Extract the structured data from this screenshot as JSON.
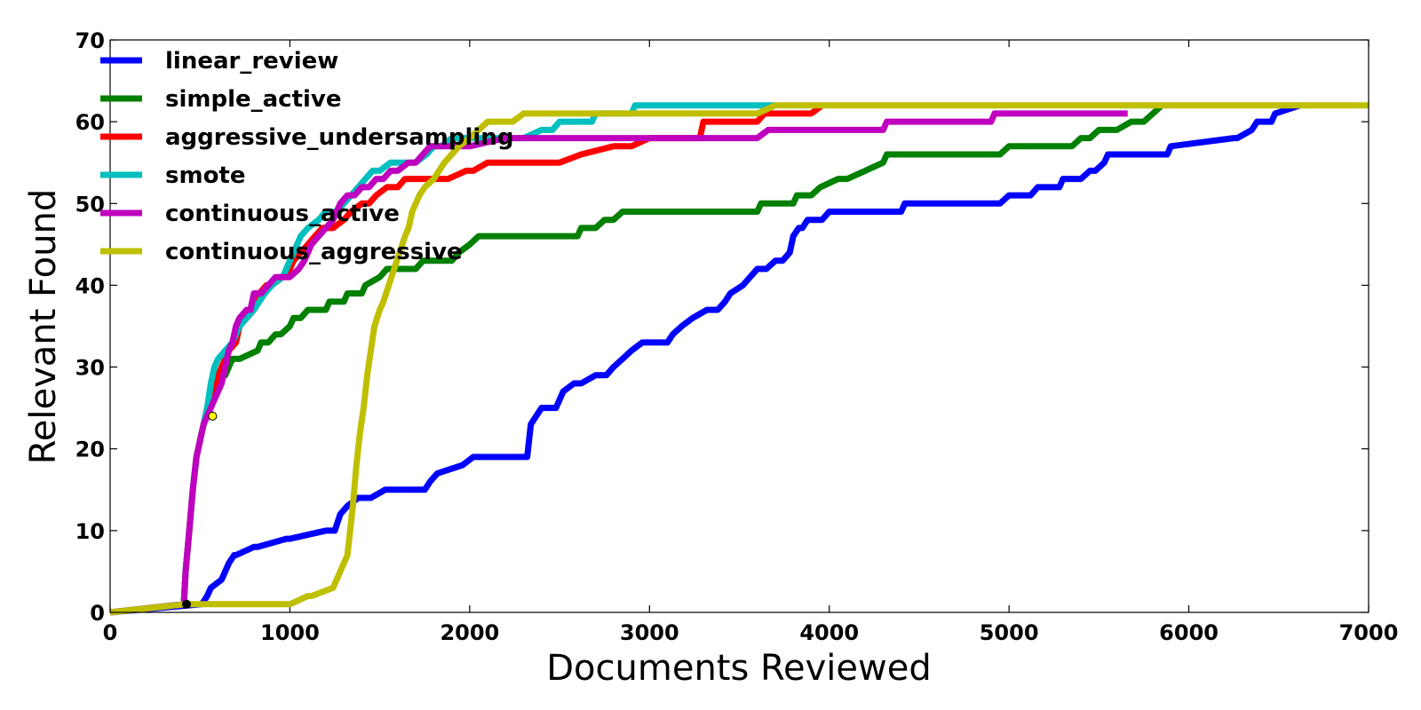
{
  "chart_data": {
    "type": "line",
    "title": "",
    "xlabel": "Documents Reviewed",
    "ylabel": "Relevant Found",
    "xlim": [
      0,
      7000
    ],
    "ylim": [
      0,
      70
    ],
    "xticks": [
      0,
      1000,
      2000,
      3000,
      4000,
      5000,
      6000,
      7000
    ],
    "yticks": [
      0,
      10,
      20,
      30,
      40,
      50,
      60,
      70
    ],
    "grid": false,
    "legend": "top-left",
    "series": [
      {
        "name": "linear_review",
        "color": "#0000ff",
        "x": [
          0,
          510,
          540,
          560,
          620,
          640,
          660,
          690,
          700,
          800,
          820,
          980,
          1000,
          1200,
          1250,
          1280,
          1320,
          1380,
          1450,
          1530,
          1750,
          1780,
          1820,
          1960,
          2020,
          2100,
          2320,
          2340,
          2400,
          2480,
          2520,
          2580,
          2620,
          2700,
          2760,
          2800,
          2850,
          2900,
          2960,
          3100,
          3130,
          3180,
          3240,
          3320,
          3380,
          3420,
          3450,
          3520,
          3560,
          3600,
          3650,
          3700,
          3740,
          3780,
          3800,
          3830,
          3850,
          3880,
          3960,
          4000,
          4400,
          4420,
          4950,
          5000,
          5120,
          5160,
          5280,
          5300,
          5400,
          5450,
          5480,
          5530,
          5550,
          5800,
          5880,
          5900,
          6250,
          6270,
          6350,
          6380,
          6460,
          6480,
          6620
        ],
        "y": [
          0,
          1,
          2,
          3,
          4,
          5,
          6,
          7,
          7,
          8,
          8,
          9,
          9,
          10,
          10,
          12,
          13,
          14,
          14,
          15,
          15,
          16,
          17,
          18,
          19,
          19,
          19,
          23,
          25,
          25,
          27,
          28,
          28,
          29,
          29,
          30,
          31,
          32,
          33,
          33,
          34,
          35,
          36,
          37,
          37,
          38,
          39,
          40,
          41,
          42,
          42,
          43,
          43,
          44,
          46,
          47,
          47,
          48,
          48,
          49,
          49,
          50,
          50,
          51,
          51,
          52,
          52,
          53,
          53,
          54,
          54,
          55,
          56,
          56,
          56,
          57,
          58,
          58,
          59,
          60,
          60,
          61,
          62
        ]
      },
      {
        "name": "simple_active",
        "color": "#008000",
        "x": [
          0,
          410,
          420,
          440,
          460,
          480,
          500,
          520,
          540,
          560,
          580,
          600,
          620,
          640,
          660,
          680,
          700,
          720,
          820,
          840,
          880,
          920,
          950,
          1000,
          1020,
          1060,
          1100,
          1200,
          1220,
          1300,
          1320,
          1400,
          1420,
          1500,
          1540,
          1600,
          1640,
          1700,
          1740,
          1800,
          1900,
          1940,
          2000,
          2050,
          2300,
          2400,
          2600,
          2620,
          2700,
          2750,
          2800,
          2850,
          2950,
          3000,
          3600,
          3620,
          3800,
          3820,
          3900,
          3950,
          4050,
          4100,
          4200,
          4300,
          4320,
          4500,
          4950,
          5000,
          5350,
          5400,
          5450,
          5500,
          5600,
          5680,
          5750,
          5800,
          5850
        ],
        "y": [
          0,
          1,
          5,
          10,
          15,
          19,
          21,
          23,
          25,
          27,
          28,
          28,
          29,
          29,
          30,
          31,
          31,
          31,
          32,
          33,
          33,
          34,
          34,
          35,
          36,
          36,
          37,
          37,
          38,
          38,
          39,
          39,
          40,
          41,
          42,
          42,
          42,
          42,
          43,
          43,
          43,
          44,
          45,
          46,
          46,
          46,
          46,
          47,
          47,
          48,
          48,
          49,
          49,
          49,
          49,
          50,
          50,
          51,
          51,
          52,
          53,
          53,
          54,
          55,
          56,
          56,
          56,
          57,
          57,
          58,
          58,
          59,
          59,
          60,
          60,
          61,
          62
        ]
      },
      {
        "name": "aggressive_undersampling",
        "color": "#ff0000",
        "x": [
          0,
          410,
          420,
          440,
          460,
          480,
          500,
          520,
          540,
          560,
          580,
          600,
          620,
          640,
          660,
          700,
          720,
          760,
          800,
          830,
          870,
          900,
          960,
          1000,
          1020,
          1060,
          1100,
          1140,
          1180,
          1240,
          1300,
          1340,
          1400,
          1440,
          1480,
          1540,
          1600,
          1640,
          1700,
          1780,
          1880,
          1980,
          2000,
          2020,
          2100,
          2300,
          2500,
          2620,
          2800,
          2900,
          3000,
          3280,
          3300,
          3600,
          3640,
          3900,
          3960
        ],
        "y": [
          0,
          1,
          5,
          10,
          15,
          19,
          21,
          23,
          25,
          26,
          27,
          29,
          30,
          31,
          32,
          33,
          35,
          36,
          37,
          39,
          40,
          40,
          41,
          42,
          43,
          44,
          45,
          46,
          47,
          47,
          48,
          49,
          50,
          50,
          51,
          52,
          52,
          53,
          53,
          53,
          53,
          54,
          54,
          54,
          55,
          55,
          55,
          56,
          57,
          57,
          58,
          58,
          60,
          60,
          61,
          61,
          62
        ]
      },
      {
        "name": "smote",
        "color": "#00bfbf",
        "x": [
          0,
          410,
          420,
          440,
          460,
          480,
          500,
          520,
          540,
          560,
          580,
          600,
          640,
          680,
          720,
          760,
          800,
          860,
          900,
          960,
          1000,
          1020,
          1060,
          1100,
          1160,
          1200,
          1260,
          1300,
          1340,
          1380,
          1420,
          1460,
          1500,
          1560,
          1600,
          1700,
          1760,
          1800,
          1840,
          1900,
          2000,
          2080,
          2100,
          2200,
          2300,
          2400,
          2460,
          2500,
          2600,
          2680,
          2700,
          2900,
          2920,
          3600,
          3700
        ],
        "y": [
          0,
          1,
          5,
          10,
          15,
          19,
          21,
          23,
          25,
          28,
          30,
          31,
          32,
          33,
          35,
          36,
          37,
          39,
          40,
          41,
          43,
          44,
          46,
          47,
          48,
          49,
          49,
          50,
          51,
          52,
          53,
          54,
          54,
          55,
          55,
          55,
          56,
          57,
          57,
          58,
          58,
          58,
          58,
          58,
          58,
          59,
          59,
          60,
          60,
          60,
          61,
          61,
          62,
          62,
          62
        ]
      },
      {
        "name": "continuous_active",
        "color": "#bf00bf",
        "x": [
          0,
          410,
          420,
          440,
          460,
          480,
          500,
          520,
          540,
          560,
          580,
          600,
          620,
          640,
          660,
          680,
          700,
          720,
          760,
          780,
          800,
          840,
          880,
          920,
          960,
          1000,
          1050,
          1080,
          1120,
          1160,
          1200,
          1240,
          1280,
          1320,
          1360,
          1400,
          1440,
          1480,
          1520,
          1560,
          1600,
          1660,
          1700,
          1740,
          1780,
          1900,
          2000,
          2200,
          2400,
          2600,
          2800,
          3000,
          3200,
          3400,
          3600,
          3660,
          4000,
          4300,
          4320,
          4900,
          4920,
          5400,
          5660
        ],
        "y": [
          0,
          1,
          5,
          10,
          15,
          19,
          21,
          23,
          24,
          25,
          26,
          27,
          28,
          30,
          32,
          33,
          35,
          36,
          37,
          37,
          39,
          39,
          40,
          41,
          41,
          41,
          42,
          43,
          45,
          46,
          47,
          48,
          50,
          51,
          51,
          52,
          52,
          53,
          53,
          54,
          54,
          55,
          55,
          56,
          57,
          57,
          57,
          58,
          58,
          58,
          58,
          58,
          58,
          58,
          58,
          59,
          59,
          59,
          60,
          60,
          61,
          61,
          61
        ]
      },
      {
        "name": "continuous_aggressive",
        "color": "#bfbf00",
        "x": [
          0,
          420,
          500,
          700,
          1000,
          1100,
          1120,
          1240,
          1320,
          1330,
          1350,
          1370,
          1390,
          1410,
          1430,
          1450,
          1470,
          1500,
          1520,
          1550,
          1580,
          1610,
          1640,
          1660,
          1680,
          1720,
          1750,
          1800,
          1830,
          1860,
          1900,
          1940,
          2000,
          2050,
          2100,
          2200,
          2240,
          2300,
          2500,
          2700,
          3000,
          3300,
          3600,
          3700,
          4000,
          5000,
          6000,
          7000
        ],
        "y": [
          0,
          1,
          1,
          1,
          1,
          2,
          2,
          3,
          7,
          9,
          13,
          18,
          22,
          25,
          29,
          32,
          35,
          37,
          38,
          40,
          42,
          44,
          46,
          47,
          49,
          51,
          52,
          53,
          54,
          55,
          56,
          57,
          58,
          59,
          60,
          60,
          60,
          61,
          61,
          61,
          61,
          61,
          61,
          62,
          62,
          62,
          62,
          62
        ]
      }
    ],
    "markers": [
      {
        "x": 425,
        "y": 1,
        "color": "#000000"
      },
      {
        "x": 570,
        "y": 24,
        "color": "#ffff00"
      }
    ]
  }
}
